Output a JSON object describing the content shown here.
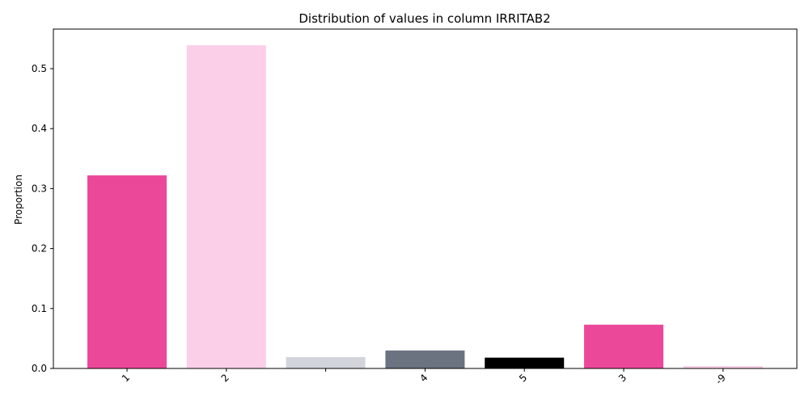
{
  "chart_data": {
    "type": "bar",
    "title": "Distribution of values in column IRRITAB2",
    "xlabel": "",
    "ylabel": "Proportion",
    "categories": [
      "1",
      "2",
      "",
      "4",
      "5",
      "3",
      "-9"
    ],
    "values": [
      0.322,
      0.539,
      0.019,
      0.03,
      0.018,
      0.073,
      0.004
    ],
    "colors": [
      "#ec4899",
      "#fbcfe8",
      "#d1d5db",
      "#6b7280",
      "#000000",
      "#ec4899",
      "#fbcfe8"
    ],
    "ylim": [
      0,
      0.566
    ],
    "yticks": [
      0.0,
      0.1,
      0.2,
      0.3,
      0.4,
      0.5
    ],
    "ytick_labels": [
      "0.0",
      "0.1",
      "0.2",
      "0.3",
      "0.4",
      "0.5"
    ],
    "grid": false,
    "legend": "none"
  }
}
